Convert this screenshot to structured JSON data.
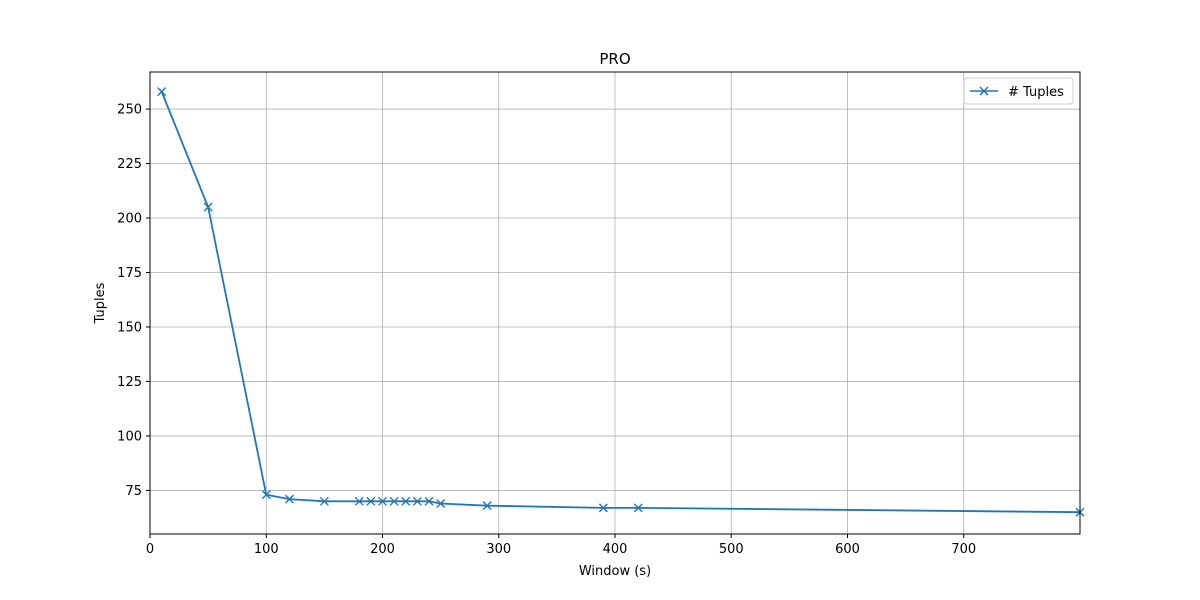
{
  "chart_data": {
    "type": "line",
    "title": "PRO",
    "xlabel": "Window (s)",
    "ylabel": "Tuples",
    "xlim": [
      0,
      800
    ],
    "ylim": [
      55,
      267
    ],
    "xticks": [
      0,
      100,
      200,
      300,
      400,
      500,
      600,
      700
    ],
    "yticks": [
      75,
      100,
      125,
      150,
      175,
      200,
      225,
      250
    ],
    "grid": true,
    "legend_position": "top-right",
    "series": [
      {
        "name": "# Tuples",
        "color": "#1f77b4",
        "marker": "x",
        "x": [
          10,
          50,
          100,
          120,
          150,
          180,
          190,
          200,
          210,
          220,
          230,
          240,
          250,
          290,
          390,
          420,
          800
        ],
        "y": [
          258,
          205,
          73,
          71,
          70,
          70,
          70,
          70,
          70,
          70,
          70,
          70,
          69,
          68,
          67,
          67,
          65
        ]
      }
    ]
  }
}
